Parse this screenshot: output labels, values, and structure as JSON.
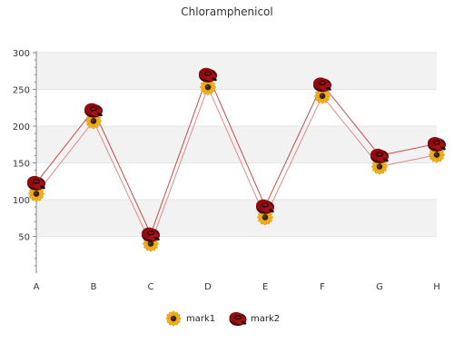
{
  "chart_data": {
    "type": "line",
    "title": "Chloramphenicol",
    "categories": [
      "A",
      "B",
      "C",
      "D",
      "E",
      "F",
      "G",
      "H"
    ],
    "ylim": [
      0,
      300
    ],
    "yticks": [
      50,
      100,
      150,
      200,
      250,
      300
    ],
    "grid": "horizontal bands",
    "legend_position": "bottom",
    "series": [
      {
        "name": "mark1",
        "values": [
          108,
          207,
          40,
          253,
          76,
          241,
          145,
          161
        ],
        "marker": "sunflower-icon",
        "line_color": "#e08a8a"
      },
      {
        "name": "mark2",
        "values": [
          123,
          222,
          53,
          270,
          91,
          257,
          160,
          176
        ],
        "marker": "red-rose-icon",
        "line_color": "#c94a4a"
      }
    ]
  },
  "colors": {
    "band": "#f2f2f2",
    "axis": "#888888",
    "sunflower_petal": "#f2b01e",
    "sunflower_center": "#3a2208",
    "rose": "#8e0c10",
    "rose_dark": "#4a0508"
  }
}
